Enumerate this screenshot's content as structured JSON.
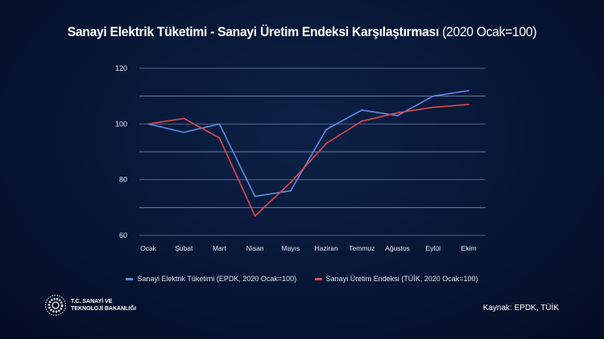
{
  "title_bold": "Sanayi Elektrik Tüketimi - Sanayi Üretim Endeksi Karşılaştırması",
  "title_light": "(2020 Ocak=100)",
  "logo_text_line1": "T.C. SANAYİ VE",
  "logo_text_line2": "TEKNOLOJİ BAKANLIĞI",
  "source": "Kaynak:  EPDK, TÜİK",
  "chart_data": {
    "type": "line",
    "categories": [
      "Ocak",
      "Şubat",
      "Mart",
      "Nisan",
      "Mayıs",
      "Haziran",
      "Temmuz",
      "Ağustos",
      "Eylül",
      "Ekim"
    ],
    "ylim": [
      60,
      120
    ],
    "yticks": [
      60,
      80,
      100,
      120
    ],
    "grid": true,
    "legend": "bottom",
    "series": [
      {
        "name": "Sanayi Elektrik Tüketimi (EPDK, 2020 Ocak=100)",
        "color": "#5b8ee6",
        "values": [
          100,
          97,
          100,
          74,
          76,
          98,
          105,
          103,
          110,
          112
        ]
      },
      {
        "name": "Sanayi Üretim Endeksi (TÜİK, 2020 Ocak=100)",
        "color": "#e0474c",
        "values": [
          100,
          102,
          95,
          67,
          79,
          93,
          101,
          104,
          106,
          107
        ]
      }
    ]
  }
}
